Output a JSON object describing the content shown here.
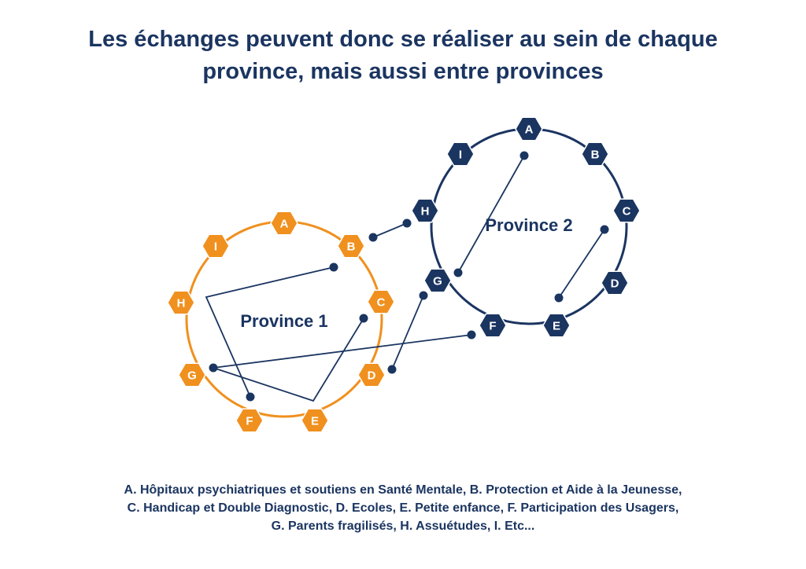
{
  "title": {
    "line1": "Les échanges peuvent donc se réaliser au sein de chaque",
    "line2": "province, mais aussi entre provinces"
  },
  "colors": {
    "orange": "#f0901e",
    "navy": "#1b3561",
    "white": "#ffffff"
  },
  "provinces": [
    {
      "label": "Province 1",
      "color": "orange",
      "nodes": [
        "A",
        "B",
        "C",
        "D",
        "E",
        "F",
        "G",
        "H",
        "I"
      ]
    },
    {
      "label": "Province 2",
      "color": "navy",
      "nodes": [
        "A",
        "B",
        "C",
        "D",
        "E",
        "F",
        "G",
        "H",
        "I"
      ]
    }
  ],
  "legend": {
    "line1": "A. Hôpitaux psychiatriques et soutiens en Santé Mentale, B. Protection et Aide à la Jeunesse,",
    "line2": "C. Handicap et Double Diagnostic, D. Ecoles, E. Petite enfance, F. Participation des Usagers,",
    "line3": "G. Parents fragilisés, H. Assuétudes, I. Etc..."
  }
}
